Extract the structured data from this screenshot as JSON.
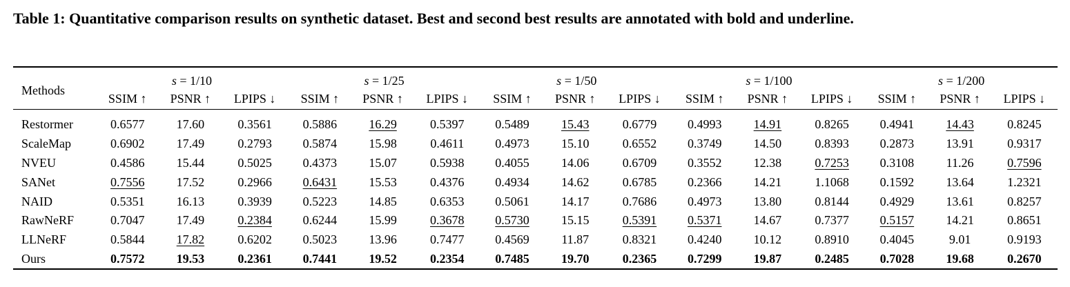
{
  "caption": "Table 1: Quantitative comparison results on synthetic dataset. Best and second best results are annotated with bold and underline.",
  "table": {
    "methods_header": "Methods",
    "groups": [
      {
        "prefix": "s",
        "rest": " = 1/10"
      },
      {
        "prefix": "s",
        "rest": " = 1/25"
      },
      {
        "prefix": "s",
        "rest": " = 1/50"
      },
      {
        "prefix": "s",
        "rest": " = 1/100"
      },
      {
        "prefix": "s",
        "rest": " = 1/200"
      }
    ],
    "metrics": [
      "SSIM ↑",
      "PSNR ↑",
      "LPIPS ↓"
    ],
    "rows": [
      {
        "method": "Restormer",
        "values": [
          "0.6577",
          "17.60",
          "0.3561",
          "0.5886",
          "16.29",
          "0.5397",
          "0.5489",
          "15.43",
          "0.6779",
          "0.4993",
          "14.91",
          "0.8265",
          "0.4941",
          "14.43",
          "0.8245"
        ],
        "underline": [
          4,
          7,
          10,
          13
        ],
        "bold": []
      },
      {
        "method": "ScaleMap",
        "values": [
          "0.6902",
          "17.49",
          "0.2793",
          "0.5874",
          "15.98",
          "0.4611",
          "0.4973",
          "15.10",
          "0.6552",
          "0.3749",
          "14.50",
          "0.8393",
          "0.2873",
          "13.91",
          "0.9317"
        ],
        "underline": [],
        "bold": []
      },
      {
        "method": "NVEU",
        "values": [
          "0.4586",
          "15.44",
          "0.5025",
          "0.4373",
          "15.07",
          "0.5938",
          "0.4055",
          "14.06",
          "0.6709",
          "0.3552",
          "12.38",
          "0.7253",
          "0.3108",
          "11.26",
          "0.7596"
        ],
        "underline": [
          11,
          14
        ],
        "bold": []
      },
      {
        "method": "SANet",
        "values": [
          "0.7556",
          "17.52",
          "0.2966",
          "0.6431",
          "15.53",
          "0.4376",
          "0.4934",
          "14.62",
          "0.6785",
          "0.2366",
          "14.21",
          "1.1068",
          "0.1592",
          "13.64",
          "1.2321"
        ],
        "underline": [
          0,
          3
        ],
        "bold": []
      },
      {
        "method": "NAID",
        "values": [
          "0.5351",
          "16.13",
          "0.3939",
          "0.5223",
          "14.85",
          "0.6353",
          "0.5061",
          "14.17",
          "0.7686",
          "0.4973",
          "13.80",
          "0.8144",
          "0.4929",
          "13.61",
          "0.8257"
        ],
        "underline": [],
        "bold": []
      },
      {
        "method": "RawNeRF",
        "values": [
          "0.7047",
          "17.49",
          "0.2384",
          "0.6244",
          "15.99",
          "0.3678",
          "0.5730",
          "15.15",
          "0.5391",
          "0.5371",
          "14.67",
          "0.7377",
          "0.5157",
          "14.21",
          "0.8651"
        ],
        "underline": [
          2,
          5,
          6,
          8,
          9,
          12
        ],
        "bold": []
      },
      {
        "method": "LLNeRF",
        "values": [
          "0.5844",
          "17.82",
          "0.6202",
          "0.5023",
          "13.96",
          "0.7477",
          "0.4569",
          "11.87",
          "0.8321",
          "0.4240",
          "10.12",
          "0.8910",
          "0.4045",
          "9.01",
          "0.9193"
        ],
        "underline": [
          1
        ],
        "bold": []
      },
      {
        "method": "Ours",
        "values": [
          "0.7572",
          "19.53",
          "0.2361",
          "0.7441",
          "19.52",
          "0.2354",
          "0.7485",
          "19.70",
          "0.2365",
          "0.7299",
          "19.87",
          "0.2485",
          "0.7028",
          "19.68",
          "0.2670"
        ],
        "underline": [],
        "bold": [
          0,
          1,
          2,
          3,
          4,
          5,
          6,
          7,
          8,
          9,
          10,
          11,
          12,
          13,
          14
        ]
      }
    ]
  }
}
